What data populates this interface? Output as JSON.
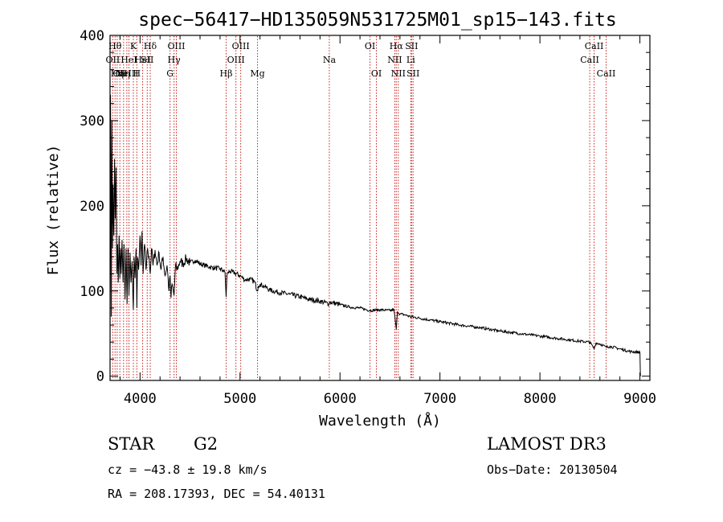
{
  "chart_data": {
    "type": "line",
    "title": "spec−56417−HD135059N531725M01_sp15−143.fits",
    "xlabel": "Wavelength (Å)",
    "ylabel": "Flux (relative)",
    "xlim": [
      3700,
      9100
    ],
    "ylim": [
      -5,
      400
    ],
    "xticks": [
      4000,
      5000,
      6000,
      7000,
      8000,
      9000
    ],
    "yticks": [
      0,
      100,
      200,
      300,
      400
    ],
    "xtick_labels": [
      "4000",
      "5000",
      "6000",
      "7000",
      "8000",
      "9000"
    ],
    "ytick_labels": [
      "0",
      "100",
      "200",
      "300",
      "400"
    ],
    "series": [
      {
        "name": "flux",
        "x": [
          3700,
          3705,
          3712,
          3718,
          3725,
          3730,
          3738,
          3745,
          3752,
          3760,
          3768,
          3775,
          3782,
          3790,
          3798,
          3805,
          3812,
          3820,
          3830,
          3840,
          3850,
          3860,
          3870,
          3880,
          3889,
          3900,
          3910,
          3920,
          3933,
          3940,
          3950,
          3960,
          3968,
          3975,
          3985,
          4000,
          4010,
          4020,
          4030,
          4045,
          4060,
          4075,
          4090,
          4102,
          4115,
          4130,
          4150,
          4170,
          4190,
          4210,
          4230,
          4250,
          4270,
          4290,
          4300,
          4310,
          4320,
          4340,
          4355,
          4370,
          4400,
          4430,
          4460,
          4500,
          4550,
          4600,
          4650,
          4700,
          4750,
          4800,
          4830,
          4850,
          4861,
          4870,
          4880,
          4900,
          4950,
          5000,
          5050,
          5100,
          5150,
          5172,
          5183,
          5200,
          5250,
          5300,
          5400,
          5500,
          5600,
          5700,
          5800,
          5890,
          5900,
          6000,
          6100,
          6200,
          6300,
          6400,
          6500,
          6540,
          6563,
          6575,
          6600,
          6650,
          6700,
          6800,
          6900,
          7000,
          7200,
          7400,
          7600,
          7800,
          8000,
          8200,
          8400,
          8500,
          8542,
          8560,
          8600,
          8662,
          8700,
          8800,
          8900,
          9000,
          9005
        ],
        "y": [
          35,
          330,
          70,
          300,
          150,
          225,
          165,
          255,
          185,
          245,
          120,
          155,
          110,
          165,
          115,
          150,
          120,
          160,
          110,
          155,
          90,
          150,
          85,
          150,
          95,
          145,
          110,
          135,
          78,
          140,
          115,
          150,
          80,
          140,
          125,
          165,
          130,
          170,
          120,
          155,
          125,
          150,
          140,
          120,
          150,
          130,
          148,
          130,
          145,
          125,
          140,
          118,
          130,
          100,
          118,
          92,
          108,
          95,
          130,
          125,
          135,
          132,
          138,
          133,
          136,
          132,
          130,
          128,
          127,
          126,
          124,
          122,
          93,
          118,
          122,
          123,
          121,
          118,
          113,
          114,
          110,
          100,
          106,
          108,
          105,
          101,
          98,
          96,
          93,
          90,
          88,
          85,
          87,
          84,
          81,
          80,
          77,
          78,
          77,
          78,
          55,
          76,
          73,
          72,
          70,
          68,
          66,
          64,
          60,
          57,
          53,
          50,
          47,
          44,
          41,
          40,
          32,
          39,
          38,
          34,
          35,
          32,
          29,
          28,
          0
        ]
      }
    ],
    "line_markers": [
      {
        "x": 3727,
        "label": "OII",
        "row": 2
      },
      {
        "x": 3750,
        "label": "Hθ",
        "row": 1
      },
      {
        "x": 3771,
        "label": "Hη",
        "row": 3
      },
      {
        "x": 3798,
        "label": "OII",
        "row": 3
      },
      {
        "x": 3835,
        "label": "Hη",
        "row": 3
      },
      {
        "x": 3868,
        "label": "NeIII",
        "row": 3
      },
      {
        "x": 3889,
        "label": "HeI",
        "row": 2
      },
      {
        "x": 3933,
        "label": "K",
        "row": 1
      },
      {
        "x": 3968,
        "label": "H",
        "row": 3
      },
      {
        "x": 4026,
        "label": "HeI",
        "row": 2
      },
      {
        "x": 4072,
        "label": "SII",
        "row": 2
      },
      {
        "x": 4102,
        "label": "Hδ",
        "row": 1
      },
      {
        "x": 4300,
        "label": "G",
        "row": 3
      },
      {
        "x": 4340,
        "label": "Hγ",
        "row": 2
      },
      {
        "x": 4363,
        "label": "OIII",
        "row": 1
      },
      {
        "x": 4861,
        "label": "Hβ",
        "row": 3
      },
      {
        "x": 4959,
        "label": "OIII",
        "row": 2
      },
      {
        "x": 5007,
        "label": "OIII",
        "row": 1
      },
      {
        "x": 5175,
        "label": "Mg",
        "row": 3
      },
      {
        "x": 5893,
        "label": "Na",
        "row": 2
      },
      {
        "x": 6300,
        "label": "OI",
        "row": 1
      },
      {
        "x": 6364,
        "label": "OI",
        "row": 3
      },
      {
        "x": 6548,
        "label": "NII",
        "row": 2
      },
      {
        "x": 6563,
        "label": "Hα",
        "row": 1
      },
      {
        "x": 6583,
        "label": "NII",
        "row": 3
      },
      {
        "x": 6708,
        "label": "Li",
        "row": 2
      },
      {
        "x": 6716,
        "label": "SII",
        "row": 1
      },
      {
        "x": 6731,
        "label": "SII",
        "row": 3
      },
      {
        "x": 8498,
        "label": "CaII",
        "row": 2
      },
      {
        "x": 8542,
        "label": "CaII",
        "row": 1
      },
      {
        "x": 8662,
        "label": "CaII",
        "row": 3
      }
    ]
  },
  "info": {
    "object_class": "STAR",
    "subclass": "G2",
    "survey": "LAMOST DR3",
    "cz": "cz = −43.8 ± 19.8 km/s",
    "obs_date": "Obs−Date: 20130504",
    "coords": "RA = 208.17393, DEC =  54.40131"
  }
}
